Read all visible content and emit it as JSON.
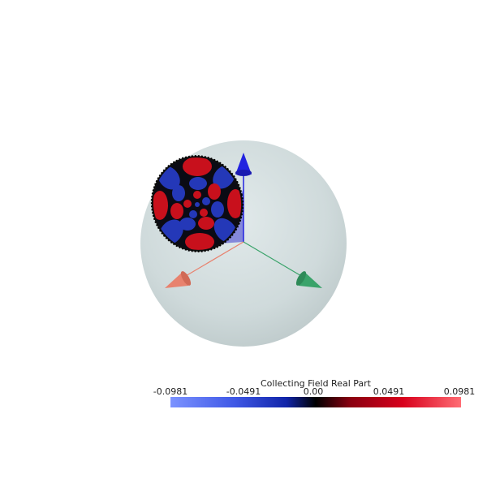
{
  "colors": {
    "sphere": "#cdd9da",
    "x_axis": "#e8826e",
    "y_axis": "#3aa36a",
    "z_axis": "#2323e0",
    "positive": "#c8101c",
    "negative": "#2438b8"
  },
  "colorbar": {
    "title": "Collecting Field Real Part",
    "ticks": [
      "-0.0981",
      "-0.0491",
      "0.00",
      "0.0491",
      "0.0981"
    ]
  }
}
